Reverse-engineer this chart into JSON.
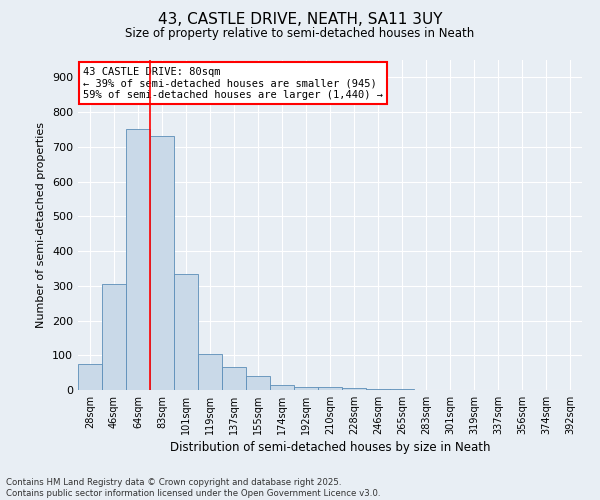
{
  "title": "43, CASTLE DRIVE, NEATH, SA11 3UY",
  "subtitle": "Size of property relative to semi-detached houses in Neath",
  "xlabel": "Distribution of semi-detached houses by size in Neath",
  "ylabel": "Number of semi-detached properties",
  "categories": [
    "28sqm",
    "46sqm",
    "64sqm",
    "83sqm",
    "101sqm",
    "119sqm",
    "137sqm",
    "155sqm",
    "174sqm",
    "192sqm",
    "210sqm",
    "228sqm",
    "246sqm",
    "265sqm",
    "283sqm",
    "301sqm",
    "319sqm",
    "337sqm",
    "356sqm",
    "374sqm",
    "392sqm"
  ],
  "values": [
    75,
    305,
    750,
    730,
    335,
    105,
    65,
    40,
    15,
    10,
    8,
    5,
    3,
    2,
    1,
    1,
    0,
    0,
    0,
    0,
    0
  ],
  "bar_color": "#c9d9e8",
  "bar_edge_color": "#5b8db8",
  "red_line_x": 2.5,
  "annotation_title": "43 CASTLE DRIVE: 80sqm",
  "annotation_line1": "← 39% of semi-detached houses are smaller (945)",
  "annotation_line2": "59% of semi-detached houses are larger (1,440) →",
  "ylim": [
    0,
    950
  ],
  "yticks": [
    0,
    100,
    200,
    300,
    400,
    500,
    600,
    700,
    800,
    900
  ],
  "background_color": "#e8eef4",
  "grid_color": "#ffffff",
  "footer_line1": "Contains HM Land Registry data © Crown copyright and database right 2025.",
  "footer_line2": "Contains public sector information licensed under the Open Government Licence v3.0."
}
